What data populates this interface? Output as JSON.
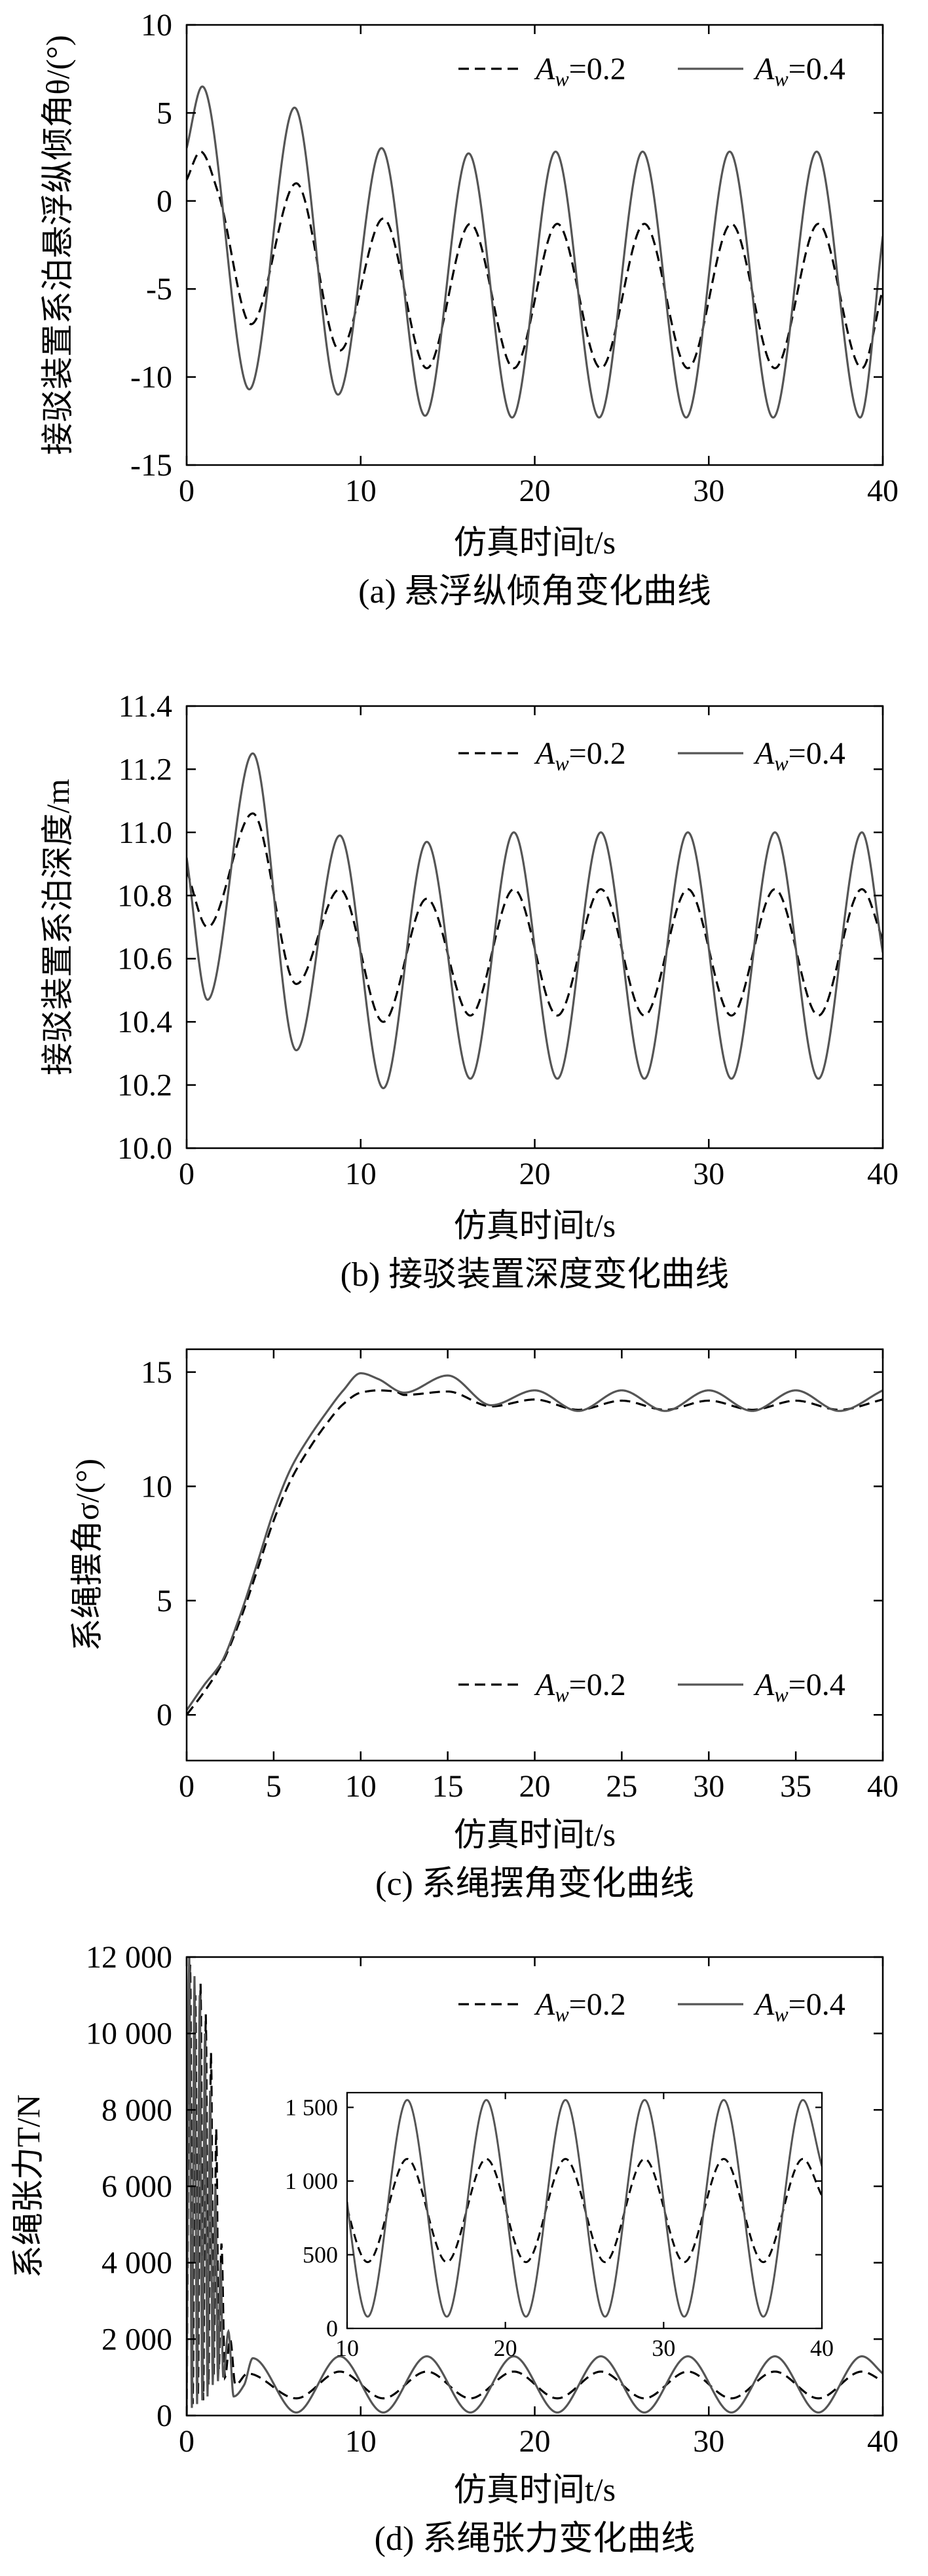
{
  "chart_data": [
    {
      "type": "line",
      "x_min": 0,
      "x_max": 40,
      "xlim": [
        0,
        40
      ],
      "ylim": [
        -15,
        10
      ],
      "xticks": [
        0,
        10,
        20,
        30,
        40
      ],
      "yticks": [
        -15,
        -10,
        -5,
        0,
        5,
        10
      ],
      "ylabel": "接驳装置系泊悬浮纵倾角θ/(°)",
      "xlabel": "仿真时间t/s",
      "caption": "(a) 悬浮纵倾角变化曲线",
      "legend_position": "top-right",
      "series": [
        {
          "name": "Aw=0.2",
          "style": "dashed",
          "color": "#000000",
          "period": 5.0,
          "keypoints": [
            [
              0,
              1.2
            ],
            [
              0.8,
              2.8
            ],
            [
              1.8,
              0.5
            ],
            [
              3.7,
              -7.0
            ],
            [
              6.3,
              1.0
            ],
            [
              8.8,
              -8.5
            ],
            [
              11.3,
              -1.0
            ],
            [
              13.8,
              -9.5
            ],
            [
              16.3,
              -1.3
            ],
            [
              18.8,
              -9.5
            ],
            [
              21.3,
              -1.3
            ],
            [
              23.8,
              -9.5
            ],
            [
              26.3,
              -1.3
            ],
            [
              28.8,
              -9.5
            ],
            [
              31.3,
              -1.3
            ],
            [
              33.8,
              -9.5
            ],
            [
              36.3,
              -1.3
            ],
            [
              38.8,
              -9.5
            ],
            [
              40,
              -5.0
            ]
          ]
        },
        {
          "name": "Aw=0.4",
          "style": "solid",
          "color": "#555555",
          "period": 5.0,
          "keypoints": [
            [
              0,
              3.0
            ],
            [
              0.9,
              6.5
            ],
            [
              3.6,
              -10.7
            ],
            [
              6.2,
              5.3
            ],
            [
              8.7,
              -11.0
            ],
            [
              11.2,
              3.0
            ],
            [
              13.7,
              -12.2
            ],
            [
              16.2,
              2.7
            ],
            [
              18.7,
              -12.3
            ],
            [
              21.2,
              2.8
            ],
            [
              23.7,
              -12.3
            ],
            [
              26.2,
              2.8
            ],
            [
              28.7,
              -12.3
            ],
            [
              31.2,
              2.8
            ],
            [
              33.7,
              -12.3
            ],
            [
              36.2,
              2.8
            ],
            [
              38.7,
              -12.3
            ],
            [
              40,
              -2.0
            ]
          ]
        }
      ]
    },
    {
      "type": "line",
      "x_min": 0,
      "x_max": 40,
      "xlim": [
        0,
        40
      ],
      "ylim": [
        10.0,
        11.4
      ],
      "xticks": [
        0,
        10,
        20,
        30,
        40
      ],
      "yticks": [
        10.0,
        10.2,
        10.4,
        10.6,
        10.8,
        11.0,
        11.2,
        11.4
      ],
      "ylabel": "接驳装置系泊深度/m",
      "xlabel": "仿真时间t/s",
      "caption": "(b) 接驳装置深度变化曲线",
      "legend_position": "top-right",
      "series": [
        {
          "name": "Aw=0.2",
          "style": "dashed",
          "color": "#000000",
          "period": 5.0,
          "keypoints": [
            [
              0,
              10.88
            ],
            [
              1.2,
              10.7
            ],
            [
              3.8,
              11.06
            ],
            [
              6.3,
              10.52
            ],
            [
              8.8,
              10.82
            ],
            [
              11.3,
              10.4
            ],
            [
              13.8,
              10.79
            ],
            [
              16.3,
              10.42
            ],
            [
              18.8,
              10.82
            ],
            [
              21.3,
              10.42
            ],
            [
              23.8,
              10.82
            ],
            [
              26.3,
              10.42
            ],
            [
              28.8,
              10.82
            ],
            [
              31.3,
              10.42
            ],
            [
              33.8,
              10.82
            ],
            [
              36.3,
              10.42
            ],
            [
              38.8,
              10.82
            ],
            [
              40,
              10.66
            ]
          ]
        },
        {
          "name": "Aw=0.4",
          "style": "solid",
          "color": "#555555",
          "period": 5.0,
          "keypoints": [
            [
              0,
              10.92
            ],
            [
              1.2,
              10.47
            ],
            [
              3.8,
              11.25
            ],
            [
              6.3,
              10.31
            ],
            [
              8.8,
              10.99
            ],
            [
              11.3,
              10.19
            ],
            [
              13.8,
              10.97
            ],
            [
              16.3,
              10.22
            ],
            [
              18.8,
              11.0
            ],
            [
              21.3,
              10.22
            ],
            [
              23.8,
              11.0
            ],
            [
              26.3,
              10.22
            ],
            [
              28.8,
              11.0
            ],
            [
              31.3,
              10.22
            ],
            [
              33.8,
              11.0
            ],
            [
              36.3,
              10.22
            ],
            [
              38.8,
              11.0
            ],
            [
              40,
              10.62
            ]
          ]
        }
      ]
    },
    {
      "type": "line",
      "x_min": 0,
      "x_max": 40,
      "xlim": [
        0,
        40
      ],
      "ylim": [
        -2,
        16
      ],
      "xticks": [
        0,
        5,
        10,
        15,
        20,
        25,
        30,
        35,
        40
      ],
      "yticks": [
        0,
        5,
        10,
        15
      ],
      "ylabel": "系绳摆角σ/(°)",
      "xlabel": "仿真时间t/s",
      "caption": "(c) 系绳摆角变化曲线",
      "legend_position": "bottom-right",
      "series": [
        {
          "name": "Aw=0.2",
          "style": "dashed",
          "color": "#000000",
          "period": 5.0,
          "keypoints": [
            [
              0,
              0
            ],
            [
              1.0,
              1.0
            ],
            [
              2.0,
              2.2
            ],
            [
              3.0,
              4.0
            ],
            [
              4.0,
              6.2
            ],
            [
              5.0,
              8.5
            ],
            [
              6.0,
              10.3
            ],
            [
              7.0,
              11.6
            ],
            [
              8.0,
              12.7
            ],
            [
              9.0,
              13.6
            ],
            [
              10.0,
              14.1
            ],
            [
              11.0,
              14.2
            ],
            [
              12.0,
              14.15
            ],
            [
              12.5,
              14.0
            ],
            [
              15.0,
              14.15
            ],
            [
              17.5,
              13.5
            ],
            [
              20.0,
              13.8
            ],
            [
              22.5,
              13.35
            ],
            [
              25.0,
              13.75
            ],
            [
              27.5,
              13.35
            ],
            [
              30.0,
              13.75
            ],
            [
              32.5,
              13.35
            ],
            [
              35.0,
              13.75
            ],
            [
              37.5,
              13.35
            ],
            [
              40,
              13.8
            ]
          ]
        },
        {
          "name": "Aw=0.4",
          "style": "solid",
          "color": "#555555",
          "period": 5.0,
          "keypoints": [
            [
              0,
              0.2
            ],
            [
              1.0,
              1.3
            ],
            [
              2.0,
              2.3
            ],
            [
              3.0,
              4.2
            ],
            [
              4.0,
              6.5
            ],
            [
              5.0,
              8.9
            ],
            [
              6.0,
              10.8
            ],
            [
              7.0,
              12.1
            ],
            [
              8.0,
              13.2
            ],
            [
              9.0,
              14.2
            ],
            [
              10.0,
              14.95
            ],
            [
              11.0,
              14.7
            ],
            [
              12.5,
              14.1
            ],
            [
              15.0,
              14.85
            ],
            [
              17.5,
              13.55
            ],
            [
              20.0,
              14.2
            ],
            [
              22.5,
              13.3
            ],
            [
              25.0,
              14.2
            ],
            [
              27.5,
              13.3
            ],
            [
              30.0,
              14.2
            ],
            [
              32.5,
              13.3
            ],
            [
              35.0,
              14.2
            ],
            [
              37.5,
              13.3
            ],
            [
              40,
              14.2
            ]
          ]
        }
      ]
    },
    {
      "type": "line",
      "x_min": 0,
      "x_max": 40,
      "xlim": [
        0,
        40
      ],
      "ylim": [
        0,
        12000
      ],
      "xticks": [
        0,
        10,
        20,
        30,
        40
      ],
      "yticks": [
        0,
        2000,
        4000,
        6000,
        8000,
        10000,
        12000
      ],
      "yticklabels": [
        "0",
        "2 000",
        "4 000",
        "6 000",
        "8 000",
        "10 000",
        "12 000"
      ],
      "ylabel": "系绳张力T/N",
      "xlabel": "仿真时间t/s",
      "caption": "(d) 系绳张力变化曲线",
      "legend_position": "top-right",
      "series": [
        {
          "name": "Aw=0.2",
          "style": "dashed",
          "color": "#000000",
          "period": 5.0,
          "keypoints": [
            [
              0,
              0
            ],
            [
              0.2,
              11800
            ],
            [
              0.35,
              300
            ],
            [
              0.5,
              11000
            ],
            [
              0.65,
              500
            ],
            [
              0.8,
              11300
            ],
            [
              0.95,
              400
            ],
            [
              1.1,
              10500
            ],
            [
              1.25,
              800
            ],
            [
              1.4,
              9500
            ],
            [
              1.55,
              1000
            ],
            [
              1.7,
              7500
            ],
            [
              1.85,
              1200
            ],
            [
              2.0,
              4500
            ],
            [
              2.2,
              1000
            ],
            [
              2.5,
              2000
            ],
            [
              2.8,
              800
            ],
            [
              3.5,
              1100
            ],
            [
              6.3,
              450
            ],
            [
              8.8,
              1150
            ],
            [
              11.3,
              450
            ],
            [
              13.8,
              1150
            ],
            [
              16.3,
              450
            ],
            [
              18.8,
              1150
            ],
            [
              21.3,
              450
            ],
            [
              23.8,
              1150
            ],
            [
              26.3,
              450
            ],
            [
              28.8,
              1150
            ],
            [
              31.3,
              450
            ],
            [
              33.8,
              1150
            ],
            [
              36.3,
              450
            ],
            [
              38.8,
              1150
            ],
            [
              40,
              900
            ]
          ]
        },
        {
          "name": "Aw=0.4",
          "style": "solid",
          "color": "#555555",
          "period": 5.0,
          "keypoints": [
            [
              0,
              0
            ],
            [
              0.15,
              12000
            ],
            [
              0.3,
              200
            ],
            [
              0.45,
              11500
            ],
            [
              0.6,
              300
            ],
            [
              0.75,
              11000
            ],
            [
              0.9,
              400
            ],
            [
              1.05,
              10000
            ],
            [
              1.2,
              500
            ],
            [
              1.35,
              8500
            ],
            [
              1.5,
              800
            ],
            [
              1.65,
              6000
            ],
            [
              1.8,
              900
            ],
            [
              1.95,
              4000
            ],
            [
              2.1,
              1000
            ],
            [
              2.4,
              2200
            ],
            [
              2.7,
              500
            ],
            [
              3.3,
              800
            ],
            [
              3.8,
              1500
            ],
            [
              6.3,
              80
            ],
            [
              8.8,
              1550
            ],
            [
              11.3,
              80
            ],
            [
              13.8,
              1550
            ],
            [
              16.3,
              80
            ],
            [
              18.8,
              1550
            ],
            [
              21.3,
              80
            ],
            [
              23.8,
              1550
            ],
            [
              26.3,
              80
            ],
            [
              28.8,
              1550
            ],
            [
              31.3,
              80
            ],
            [
              33.8,
              1550
            ],
            [
              36.3,
              80
            ],
            [
              38.8,
              1550
            ],
            [
              40,
              1100
            ]
          ]
        }
      ],
      "inset": {
        "xlim": [
          10,
          40
        ],
        "ylim": [
          0,
          1600
        ],
        "xticks": [
          10,
          20,
          30,
          40
        ],
        "yticks": [
          0,
          500,
          1000,
          1500
        ],
        "yticklabels": [
          "0",
          "500",
          "1 000",
          "1 500"
        ]
      }
    }
  ],
  "legend": {
    "series_a_symbol": "A",
    "series_a_sub": "w",
    "series_a_value": "=0.2",
    "series_b_symbol": "A",
    "series_b_sub": "w",
    "series_b_value": "=0.4"
  }
}
